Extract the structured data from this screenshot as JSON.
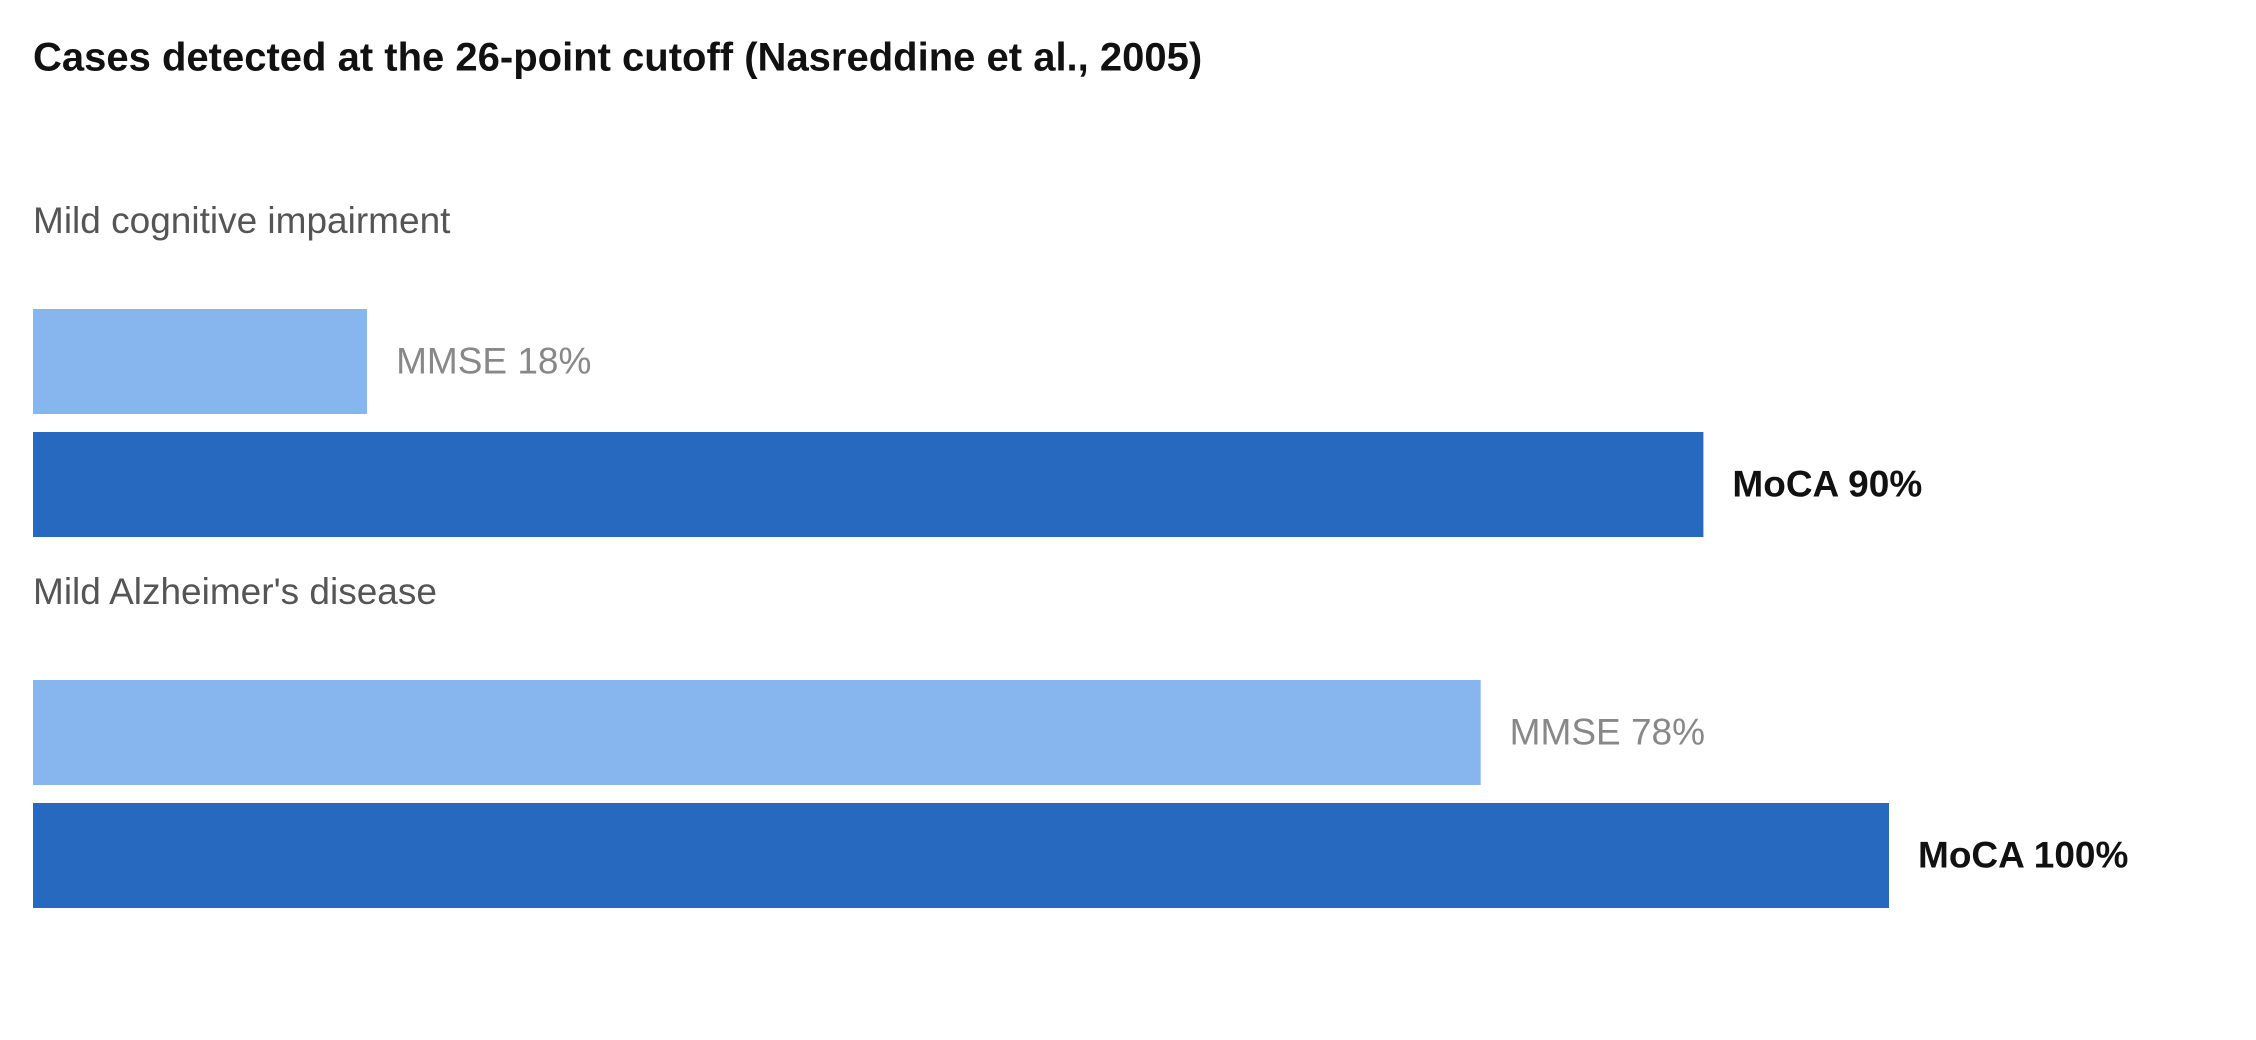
{
  "chart_data": {
    "type": "bar",
    "orientation": "horizontal",
    "title": "Cases detected at the 26-point cutoff (Nasreddine et al., 2005)",
    "categories": [
      "Mild cognitive impairment",
      "Mild Alzheimer's disease"
    ],
    "series": [
      {
        "color": "#87b5ee",
        "values": [
          18,
          78
        ],
        "value_labels": [
          "MMSE 18%",
          "MMSE 78%"
        ]
      },
      {
        "color": "#2769be",
        "values": [
          90,
          100
        ],
        "value_labels": [
          "MoCA 90%",
          "MoCA 100%"
        ]
      }
    ],
    "xlim": [
      0,
      100
    ]
  }
}
